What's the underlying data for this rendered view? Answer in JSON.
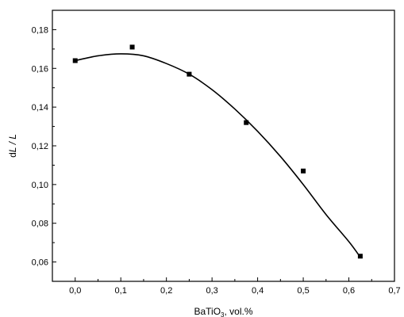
{
  "chart_data": {
    "type": "scatter",
    "xlabel_main": "BaTiO",
    "xlabel_sub": "3",
    "xlabel_unit": ", vol.%",
    "ylabel_prefix": "d",
    "ylabel_italic": "L / L",
    "xlim": [
      -0.05,
      0.7
    ],
    "ylim": [
      0.05,
      0.19
    ],
    "xticks": [
      0.0,
      0.1,
      0.2,
      0.3,
      0.4,
      0.5,
      0.6,
      0.7
    ],
    "xtick_labels": [
      "0,0",
      "0,1",
      "0,2",
      "0,3",
      "0,4",
      "0,5",
      "0,6",
      "0,7"
    ],
    "yticks": [
      0.06,
      0.08,
      0.1,
      0.12,
      0.14,
      0.16,
      0.18
    ],
    "ytick_labels": [
      "0,06",
      "0,08",
      "0,10",
      "0,12",
      "0,14",
      "0,16",
      "0,18"
    ],
    "grid": false,
    "legend": "none",
    "series": [
      {
        "type": "scatter",
        "marker": "square",
        "x": [
          0.0,
          0.125,
          0.25,
          0.375,
          0.5,
          0.625
        ],
        "y": [
          0.164,
          0.171,
          0.157,
          0.132,
          0.107,
          0.063
        ]
      },
      {
        "type": "line",
        "x": [
          0.0,
          0.05,
          0.1,
          0.15,
          0.2,
          0.25,
          0.3,
          0.35,
          0.4,
          0.45,
          0.5,
          0.55,
          0.6,
          0.625
        ],
        "y": [
          0.164,
          0.1665,
          0.1675,
          0.1665,
          0.1625,
          0.157,
          0.149,
          0.139,
          0.1275,
          0.1145,
          0.1,
          0.0845,
          0.0705,
          0.0625
        ]
      }
    ]
  }
}
